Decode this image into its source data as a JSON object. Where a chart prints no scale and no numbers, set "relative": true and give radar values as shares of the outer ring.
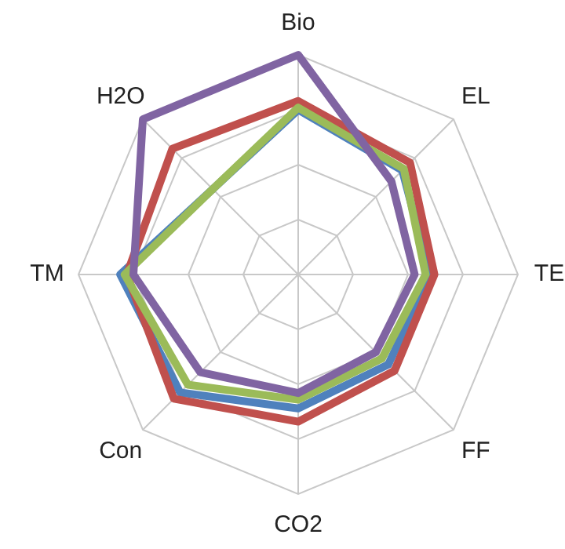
{
  "chart_data": {
    "type": "radar",
    "relative": true,
    "grid": true,
    "marker": "none",
    "categories": [
      "Bio",
      "EL",
      "TE",
      "FF",
      "CO2",
      "Con",
      "TM",
      "H2O"
    ],
    "series": [
      {
        "color": "#4f81bd",
        "values": [
          0.75,
          0.67,
          0.6,
          0.58,
          0.61,
          0.76,
          0.81,
          0.55
        ]
      },
      {
        "color": "#c0504d",
        "values": [
          0.79,
          0.72,
          0.62,
          0.62,
          0.67,
          0.8,
          0.78,
          0.81
        ]
      },
      {
        "color": "#9bbb59",
        "values": [
          0.76,
          0.68,
          0.58,
          0.54,
          0.57,
          0.71,
          0.79,
          0.55
        ]
      },
      {
        "color": "#8064a2",
        "values": [
          1.0,
          0.6,
          0.53,
          0.5,
          0.54,
          0.63,
          0.75,
          1.0
        ]
      }
    ]
  }
}
